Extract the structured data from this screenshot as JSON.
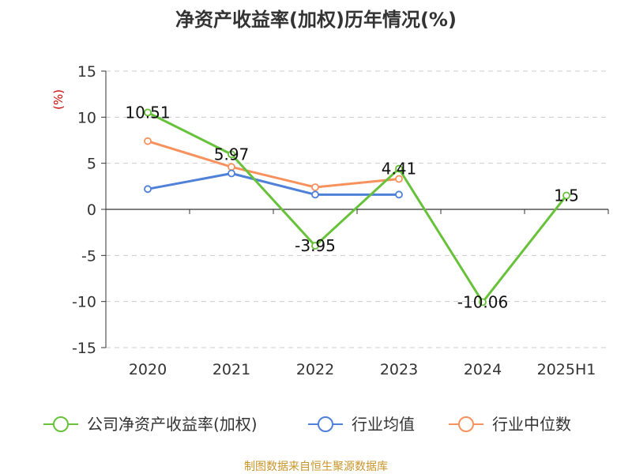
{
  "chart_data": {
    "type": "line",
    "title": "净资产收益率(加权)历年情况(%)",
    "ylabel": "(%)",
    "xlabel": "",
    "categories": [
      "2020",
      "2021",
      "2022",
      "2023",
      "2024",
      "2025H1"
    ],
    "ylim": [
      -15,
      15
    ],
    "yticks": [
      15,
      10,
      5,
      0,
      -5,
      -10,
      -15
    ],
    "grid": true,
    "legend_position": "bottom",
    "series": [
      {
        "name": "公司净资产收益率(加权)",
        "color": "#67c23a",
        "values": [
          10.51,
          5.97,
          -3.95,
          4.41,
          -10.06,
          1.5
        ],
        "data_labels": [
          "10.51",
          "5.97",
          "-3.95",
          "4.41",
          "-10.06",
          "1.5"
        ]
      },
      {
        "name": "行业均值",
        "color": "#4f81d8",
        "values": [
          2.2,
          3.9,
          1.6,
          1.6,
          null,
          null
        ]
      },
      {
        "name": "行业中位数",
        "color": "#f7925e",
        "values": [
          7.4,
          4.6,
          2.4,
          3.3,
          null,
          null
        ]
      }
    ]
  },
  "source": "制图数据来自恒生聚源数据库"
}
